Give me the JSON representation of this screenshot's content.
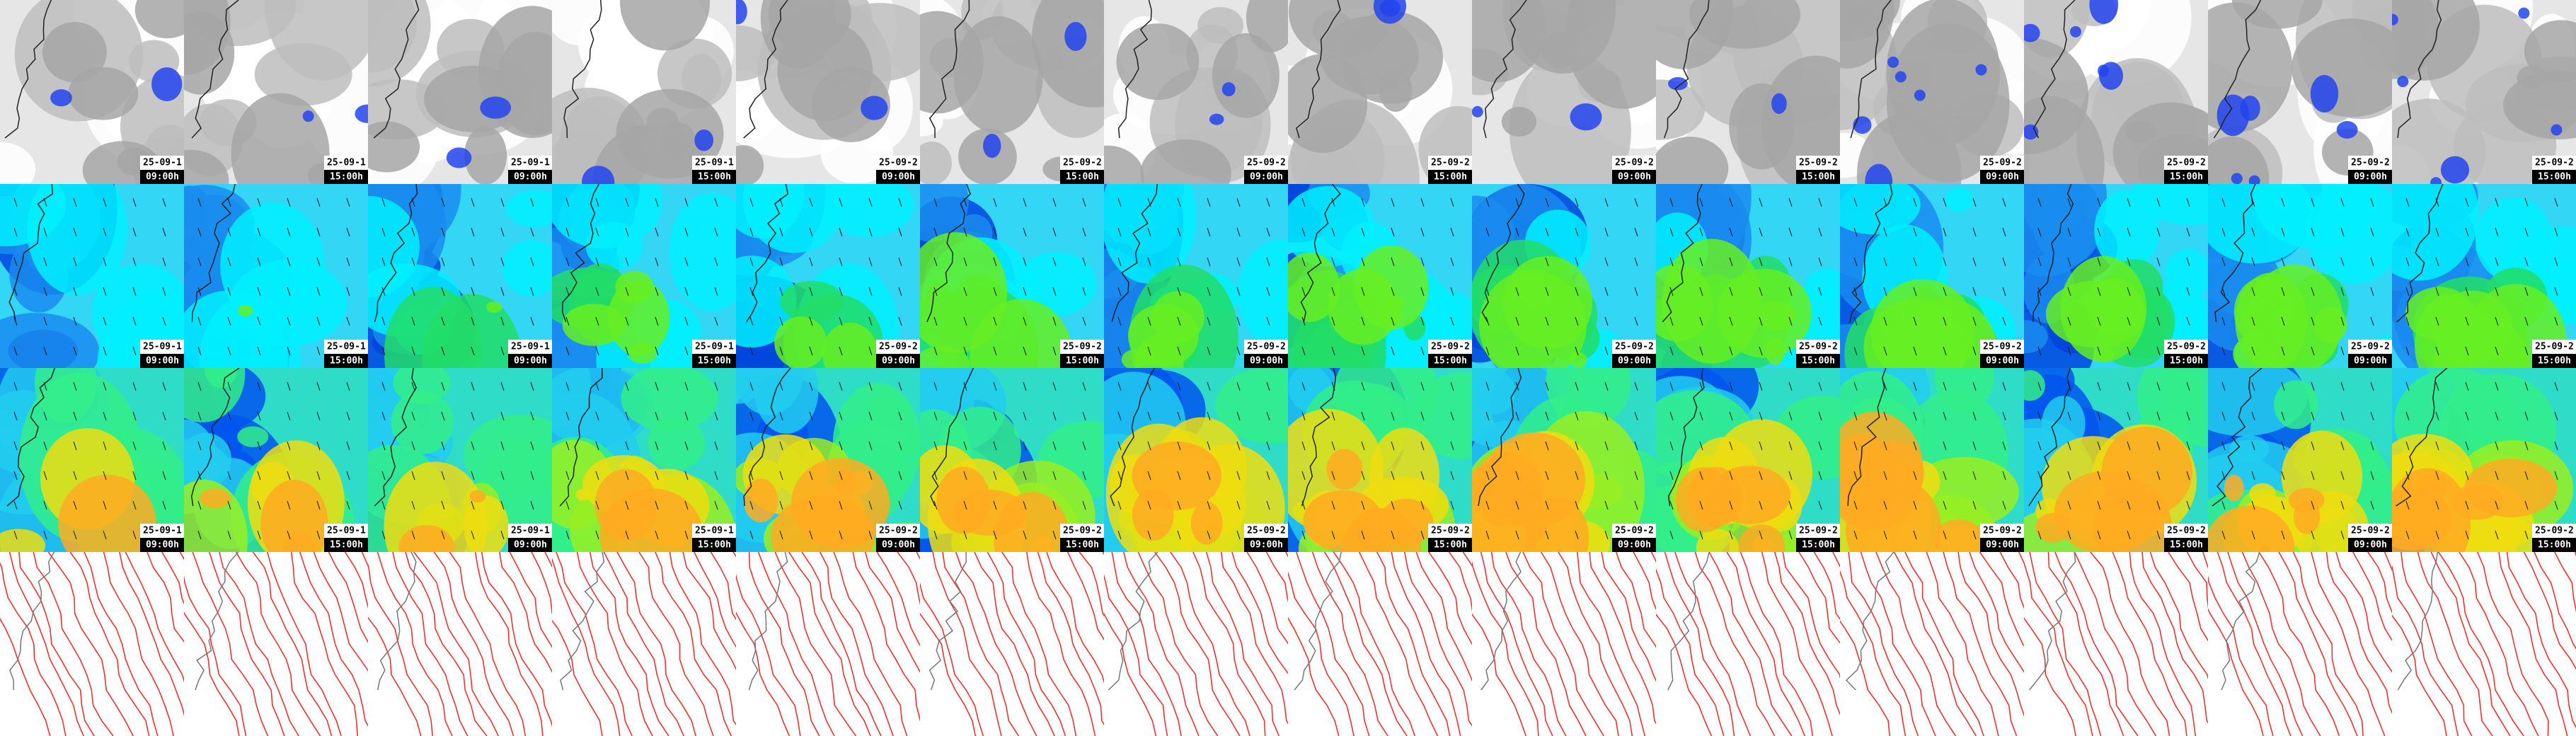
{
  "columns": [
    {
      "date": "25-09-1",
      "time": "09:00h"
    },
    {
      "date": "25-09-1",
      "time": "15:00h"
    },
    {
      "date": "25-09-1",
      "time": "09:00h"
    },
    {
      "date": "25-09-1",
      "time": "15:00h"
    },
    {
      "date": "25-09-2",
      "time": "09:00h"
    },
    {
      "date": "25-09-2",
      "time": "15:00h"
    },
    {
      "date": "25-09-2",
      "time": "09:00h"
    },
    {
      "date": "25-09-2",
      "time": "15:00h"
    },
    {
      "date": "25-09-2",
      "time": "09:00h"
    },
    {
      "date": "25-09-2",
      "time": "15:00h"
    },
    {
      "date": "25-09-2",
      "time": "09:00h"
    },
    {
      "date": "25-09-2",
      "time": "15:00h"
    },
    {
      "date": "25-09-2",
      "time": "09:00h"
    },
    {
      "date": "25-09-2",
      "time": "15:00h"
    }
  ]
}
